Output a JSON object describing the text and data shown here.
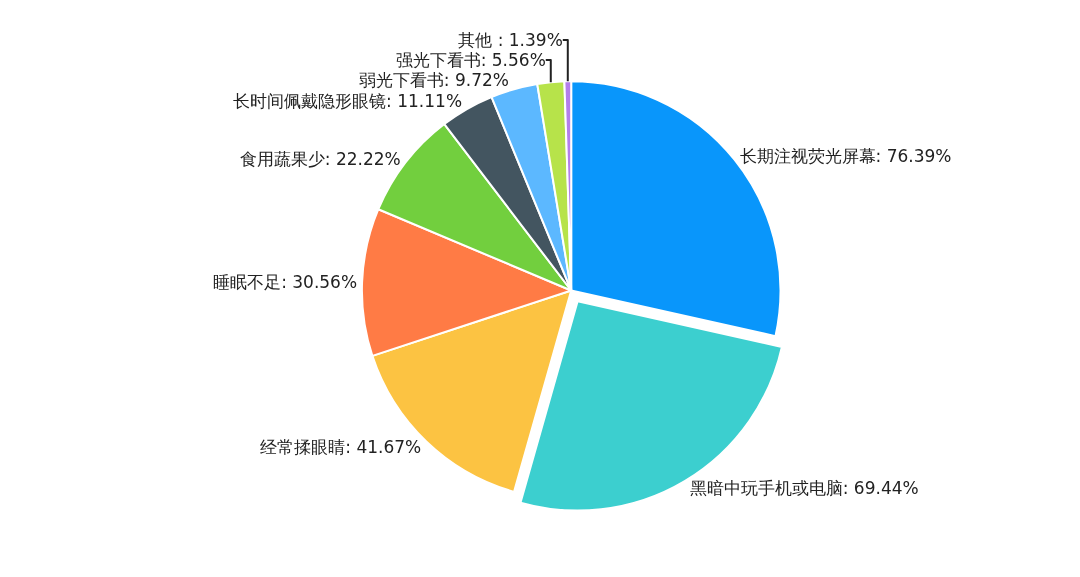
{
  "chart_data": {
    "type": "pie",
    "categories": [
      "长期注视荧光屏幕",
      "黑暗中玩手机或电脑",
      "经常揉眼睛",
      "睡眠不足",
      "食用蔬果少",
      "长时间佩戴隐形眼镜",
      "弱光下看书",
      "强光下看书",
      "其他"
    ],
    "values": [
      76.39,
      69.44,
      41.67,
      30.56,
      22.22,
      11.11,
      9.72,
      5.56,
      1.39
    ],
    "value_labels": [
      ": 76.39%",
      ": 69.44%",
      ": 41.67%",
      ": 30.56%",
      ": 22.22%",
      ": 11.11%",
      ": 9.72%",
      ": 5.56%",
      " : 1.39%"
    ],
    "colors": [
      "#0996fb",
      "#3ccfcf",
      "#fcc342",
      "#ff7b45",
      "#72cf3e",
      "#435560",
      "#5cb8ff",
      "#b7e34a",
      "#b37feb"
    ],
    "legend": false
  }
}
